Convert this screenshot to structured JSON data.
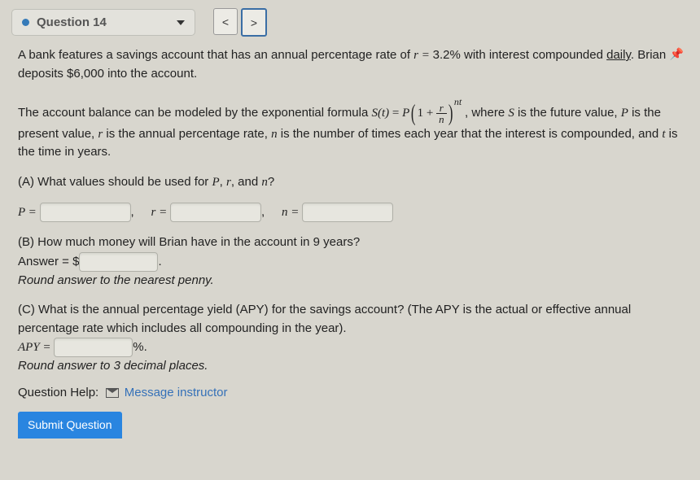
{
  "header": {
    "title": "Question 14",
    "prev": "<",
    "next": ">"
  },
  "pin_icon": "📌",
  "intro": {
    "line1_a": "A bank features a savings account that has an annual percentage rate of ",
    "r_eq": "r = ",
    "rate": "3.2%",
    "line1_b": " with interest compounded ",
    "daily": "daily",
    "line1_c": ". Brian deposits $6,000 into the account."
  },
  "formula_para": {
    "pre": "The account balance can be modeled by the exponential formula ",
    "S": "S(t)",
    "eq": " = ",
    "P": "P",
    "one_plus": "1 + ",
    "frac_num": "r",
    "frac_den": "n",
    "exp": "nt",
    "post1": ", where ",
    "post2": " is the future value, ",
    "post3": " is the present value, ",
    "post4": " is the annual percentage rate, ",
    "post5": " is the number of times each year that the interest is compounded, and ",
    "post6": " is the time in years.",
    "v_S": "S",
    "v_P": "P",
    "v_r": "r",
    "v_n": "n",
    "v_t": "t"
  },
  "partA": {
    "prompt_a": "(A) What values should be used for ",
    "P": "P",
    "sep1": ", ",
    "r": "r",
    "sep2": ", and ",
    "n": "n",
    "q": "?",
    "Peq": "P = ",
    "req": "r = ",
    "neq": "n = ",
    "comma": ","
  },
  "partB": {
    "prompt": "(B) How much money will Brian have in the account in 9 years?",
    "ans": "Answer = $",
    "period": ".",
    "round": "Round answer to the nearest penny."
  },
  "partC": {
    "prompt": "(C) What is the annual percentage yield (APY) for the savings account? (The APY is the actual or effective annual percentage rate which includes all compounding in the year).",
    "apyeq": "APY = ",
    "pct": "%.",
    "round": "Round answer to 3 decimal places."
  },
  "help": {
    "label": "Question Help:",
    "linktext": "Message instructor"
  },
  "submit": "Submit Question"
}
